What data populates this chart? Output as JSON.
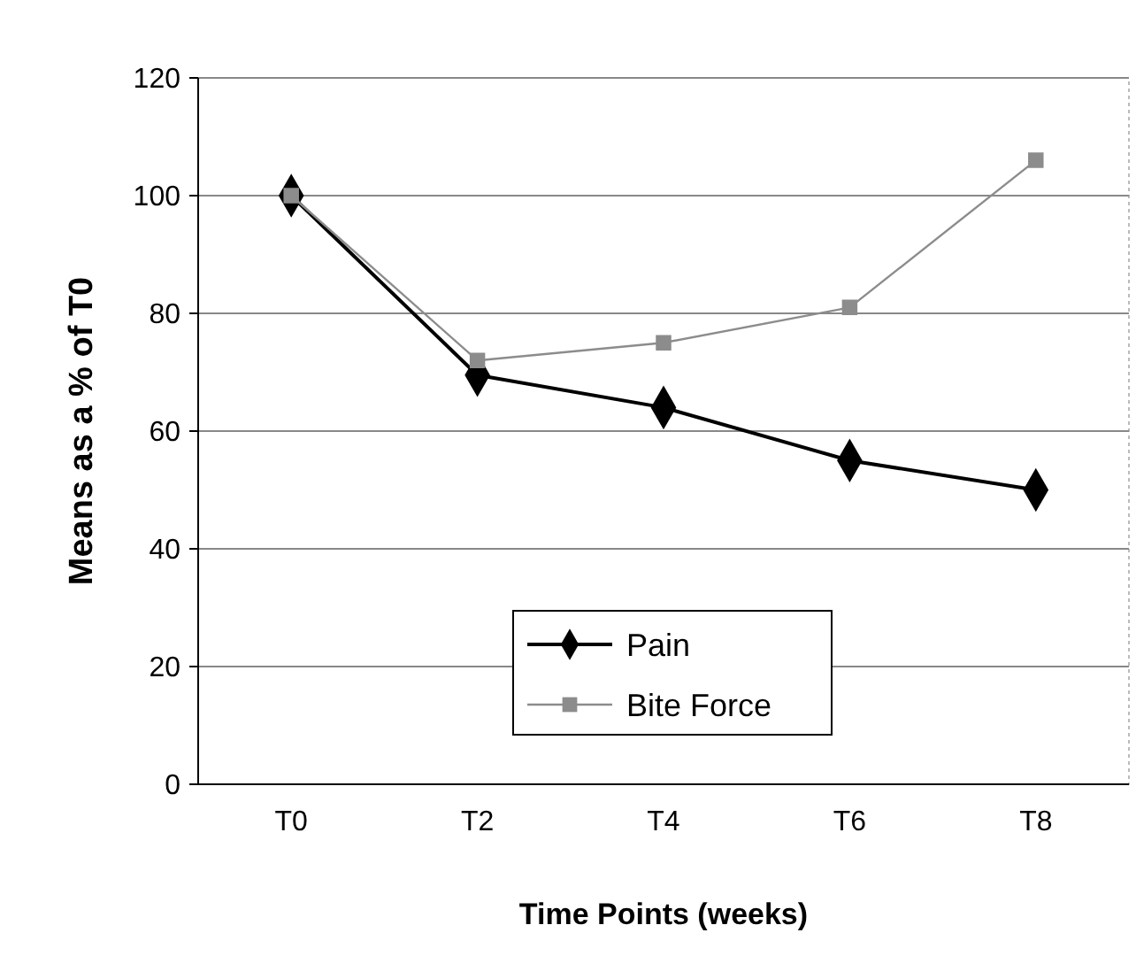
{
  "chart_data": {
    "type": "line",
    "xlabel": "Time Points (weeks)",
    "ylabel": "Means as a % of T0",
    "categories": [
      "T0",
      "T2",
      "T4",
      "T6",
      "T8"
    ],
    "series": [
      {
        "name": "Pain",
        "color": "#000000",
        "marker": "diamond",
        "values": [
          100,
          69.5,
          64,
          55,
          50
        ]
      },
      {
        "name": "Bite Force",
        "color": "#8c8c8c",
        "marker": "square",
        "values": [
          100,
          72,
          75,
          81,
          106
        ]
      }
    ],
    "ylim": [
      0,
      120
    ],
    "yticks": [
      0,
      20,
      40,
      60,
      80,
      100,
      120
    ],
    "grid": "y",
    "legend": "bottom"
  }
}
